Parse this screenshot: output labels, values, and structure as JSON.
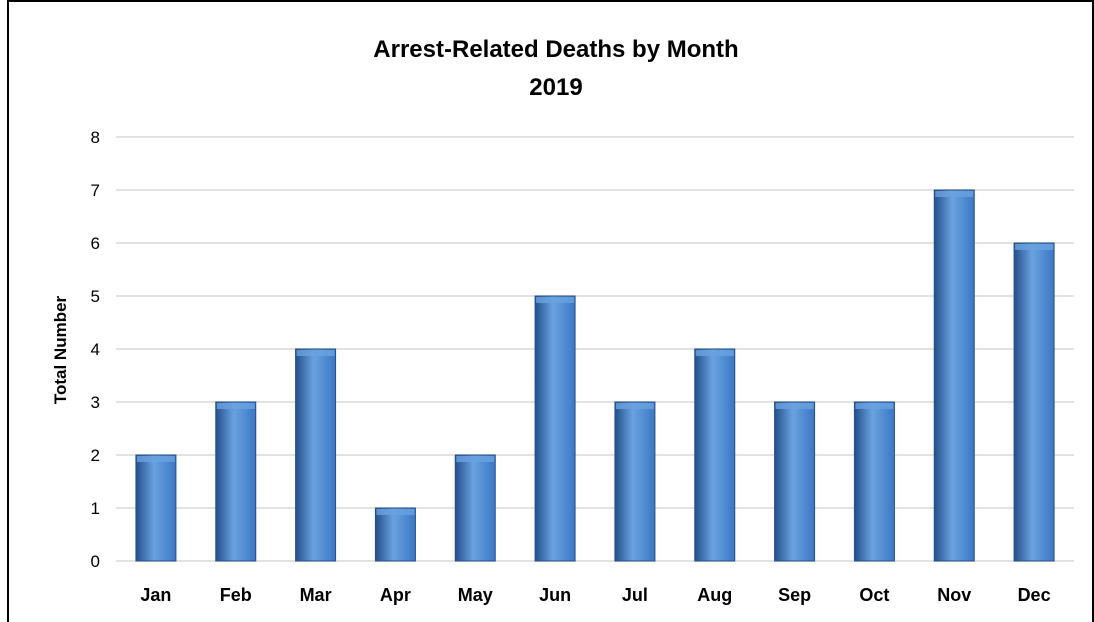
{
  "chart_data": {
    "type": "bar",
    "title": "Arrest-Related Deaths by Month",
    "subtitle": "2019",
    "xlabel": "",
    "ylabel": "Total Number",
    "categories": [
      "Jan",
      "Feb",
      "Mar",
      "Apr",
      "May",
      "Jun",
      "Jul",
      "Aug",
      "Sep",
      "Oct",
      "Nov",
      "Dec"
    ],
    "values": [
      2,
      3,
      4,
      1,
      2,
      5,
      3,
      4,
      3,
      3,
      7,
      6
    ],
    "ylim": [
      0,
      8
    ],
    "yticks": [
      0,
      1,
      2,
      3,
      4,
      5,
      6,
      7,
      8
    ],
    "grid": true,
    "legend": "none",
    "bar_color": "#3a78c4",
    "bar_color_light": "#6aa2e0",
    "bar_color_dark": "#244f8a",
    "grid_color": "#d9d9d9"
  }
}
